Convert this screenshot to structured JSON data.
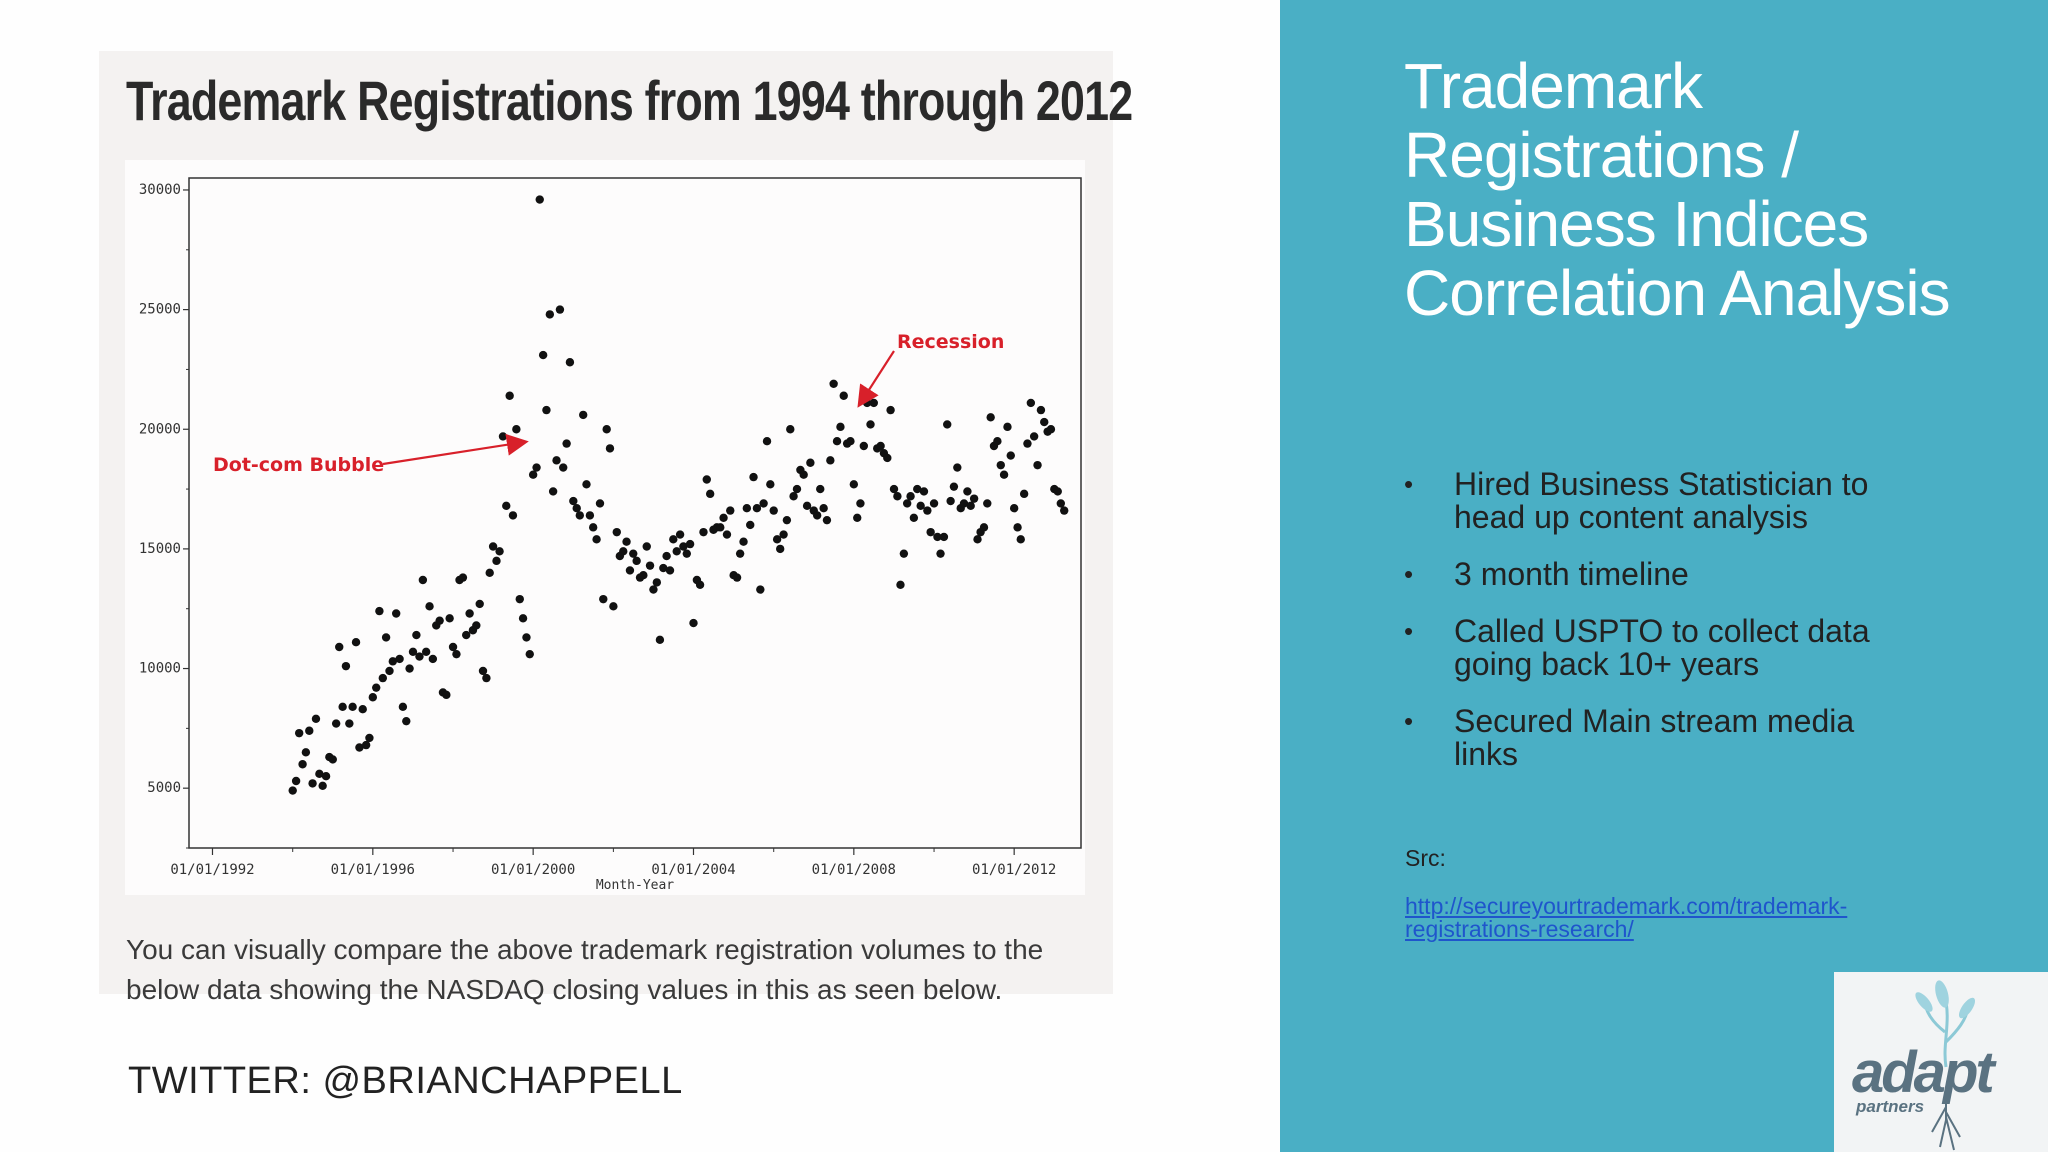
{
  "slide": {
    "twitter": "TWITTER: @BRIANCHAPPELL",
    "heading": "Trademark Registrations / Business Indices Correlation Analysis",
    "bullets": [
      "Hired Business Statistician to head up content analysis",
      "3 month timeline",
      "Called USPTO to collect data going back 10+ years",
      "Secured Main stream media links"
    ],
    "src_label": "Src:",
    "src_url": "http://secureyourtrademark.com/trademark-registrations-research/",
    "logo": {
      "word": "adapt",
      "sub": "partners"
    },
    "colors": {
      "panel": "#4aafc5",
      "annotation": "#d8202a",
      "link": "#1f55cc"
    }
  },
  "embed": {
    "caption": "You can visually compare the above trademark registration volumes to the below data showing the NASDAQ closing values in this as seen below."
  },
  "chart_data": {
    "type": "scatter",
    "title": "Trademark Registrations from 1994 through 2012",
    "xlabel": "Month-Year",
    "ylabel": "",
    "xlim": [
      "1991-06-01",
      "2013-09-01"
    ],
    "ylim": [
      2500,
      30500
    ],
    "xticks": [
      "01/01/1992",
      "01/01/1996",
      "01/01/2000",
      "01/01/2004",
      "01/01/2008",
      "01/01/2012"
    ],
    "yticks": [
      5000,
      10000,
      15000,
      20000,
      25000,
      30000
    ],
    "annotations": [
      {
        "text": "Dot-com Bubble",
        "target": [
          "1999-11-01",
          19800
        ]
      },
      {
        "text": "Recession",
        "target": [
          "2008-01-01",
          20800
        ]
      }
    ],
    "points": [
      [
        "1994-01-01",
        4900
      ],
      [
        "1994-02-01",
        5300
      ],
      [
        "1994-03-01",
        7300
      ],
      [
        "1994-04-01",
        6000
      ],
      [
        "1994-05-01",
        6500
      ],
      [
        "1994-06-01",
        7400
      ],
      [
        "1994-07-01",
        5200
      ],
      [
        "1994-08-01",
        7900
      ],
      [
        "1994-09-01",
        5600
      ],
      [
        "1994-10-01",
        5100
      ],
      [
        "1994-11-01",
        5500
      ],
      [
        "1994-12-01",
        6300
      ],
      [
        "1995-01-01",
        6200
      ],
      [
        "1995-02-01",
        7700
      ],
      [
        "1995-03-01",
        10900
      ],
      [
        "1995-04-01",
        8400
      ],
      [
        "1995-05-01",
        10100
      ],
      [
        "1995-06-01",
        7700
      ],
      [
        "1995-07-01",
        8400
      ],
      [
        "1995-08-01",
        11100
      ],
      [
        "1995-09-01",
        6700
      ],
      [
        "1995-10-01",
        8300
      ],
      [
        "1995-11-01",
        6800
      ],
      [
        "1995-12-01",
        7100
      ],
      [
        "1996-01-01",
        8800
      ],
      [
        "1996-02-01",
        9200
      ],
      [
        "1996-03-01",
        12400
      ],
      [
        "1996-04-01",
        9600
      ],
      [
        "1996-05-01",
        11300
      ],
      [
        "1996-06-01",
        9900
      ],
      [
        "1996-07-01",
        10300
      ],
      [
        "1996-08-01",
        12300
      ],
      [
        "1996-09-01",
        10400
      ],
      [
        "1996-10-01",
        8400
      ],
      [
        "1996-11-01",
        7800
      ],
      [
        "1996-12-01",
        10000
      ],
      [
        "1997-01-01",
        10700
      ],
      [
        "1997-02-01",
        11400
      ],
      [
        "1997-03-01",
        10500
      ],
      [
        "1997-04-01",
        13700
      ],
      [
        "1997-05-01",
        10700
      ],
      [
        "1997-06-01",
        12600
      ],
      [
        "1997-07-01",
        10400
      ],
      [
        "1997-08-01",
        11800
      ],
      [
        "1997-09-01",
        12000
      ],
      [
        "1997-10-01",
        9000
      ],
      [
        "1997-11-01",
        8900
      ],
      [
        "1997-12-01",
        12100
      ],
      [
        "1998-01-01",
        10900
      ],
      [
        "1998-02-01",
        10600
      ],
      [
        "1998-03-01",
        13700
      ],
      [
        "1998-04-01",
        13800
      ],
      [
        "1998-05-01",
        11400
      ],
      [
        "1998-06-01",
        12300
      ],
      [
        "1998-07-01",
        11600
      ],
      [
        "1998-08-01",
        11800
      ],
      [
        "1998-09-01",
        12700
      ],
      [
        "1998-10-01",
        9900
      ],
      [
        "1998-11-01",
        9600
      ],
      [
        "1998-12-01",
        14000
      ],
      [
        "1999-01-01",
        15100
      ],
      [
        "1999-02-01",
        14500
      ],
      [
        "1999-03-01",
        14900
      ],
      [
        "1999-04-01",
        19700
      ],
      [
        "1999-05-01",
        16800
      ],
      [
        "1999-06-01",
        21400
      ],
      [
        "1999-07-01",
        16400
      ],
      [
        "1999-08-01",
        20000
      ],
      [
        "1999-09-01",
        12900
      ],
      [
        "1999-10-01",
        12100
      ],
      [
        "1999-11-01",
        11300
      ],
      [
        "1999-12-01",
        10600
      ],
      [
        "2000-01-01",
        18100
      ],
      [
        "2000-02-01",
        18400
      ],
      [
        "2000-03-01",
        29600
      ],
      [
        "2000-04-01",
        23100
      ],
      [
        "2000-05-01",
        20800
      ],
      [
        "2000-06-01",
        24800
      ],
      [
        "2000-07-01",
        17400
      ],
      [
        "2000-08-01",
        18700
      ],
      [
        "2000-09-01",
        25000
      ],
      [
        "2000-10-01",
        18400
      ],
      [
        "2000-11-01",
        19400
      ],
      [
        "2000-12-01",
        22800
      ],
      [
        "2001-01-01",
        17000
      ],
      [
        "2001-02-01",
        16700
      ],
      [
        "2001-03-01",
        16400
      ],
      [
        "2001-04-01",
        20600
      ],
      [
        "2001-05-01",
        17700
      ],
      [
        "2001-06-01",
        16400
      ],
      [
        "2001-07-01",
        15900
      ],
      [
        "2001-08-01",
        15400
      ],
      [
        "2001-09-01",
        16900
      ],
      [
        "2001-10-01",
        12900
      ],
      [
        "2001-11-01",
        20000
      ],
      [
        "2001-12-01",
        19200
      ],
      [
        "2002-01-01",
        12600
      ],
      [
        "2002-02-01",
        15700
      ],
      [
        "2002-03-01",
        14700
      ],
      [
        "2002-04-01",
        14900
      ],
      [
        "2002-05-01",
        15300
      ],
      [
        "2002-06-01",
        14100
      ],
      [
        "2002-07-01",
        14800
      ],
      [
        "2002-08-01",
        14500
      ],
      [
        "2002-09-01",
        13800
      ],
      [
        "2002-10-01",
        13900
      ],
      [
        "2002-11-01",
        15100
      ],
      [
        "2002-12-01",
        14300
      ],
      [
        "2003-01-01",
        13300
      ],
      [
        "2003-02-01",
        13600
      ],
      [
        "2003-03-01",
        11200
      ],
      [
        "2003-04-01",
        14200
      ],
      [
        "2003-05-01",
        14700
      ],
      [
        "2003-06-01",
        14100
      ],
      [
        "2003-07-01",
        15400
      ],
      [
        "2003-08-01",
        14900
      ],
      [
        "2003-09-01",
        15600
      ],
      [
        "2003-10-01",
        15100
      ],
      [
        "2003-11-01",
        14800
      ],
      [
        "2003-12-01",
        15200
      ],
      [
        "2004-01-01",
        11900
      ],
      [
        "2004-02-01",
        13700
      ],
      [
        "2004-03-01",
        13500
      ],
      [
        "2004-04-01",
        15700
      ],
      [
        "2004-05-01",
        17900
      ],
      [
        "2004-06-01",
        17300
      ],
      [
        "2004-07-01",
        15800
      ],
      [
        "2004-08-01",
        15900
      ],
      [
        "2004-09-01",
        15900
      ],
      [
        "2004-10-01",
        16300
      ],
      [
        "2004-11-01",
        15600
      ],
      [
        "2004-12-01",
        16600
      ],
      [
        "2005-01-01",
        13900
      ],
      [
        "2005-02-01",
        13800
      ],
      [
        "2005-03-01",
        14800
      ],
      [
        "2005-04-01",
        15300
      ],
      [
        "2005-05-01",
        16700
      ],
      [
        "2005-06-01",
        16000
      ],
      [
        "2005-07-01",
        18000
      ],
      [
        "2005-08-01",
        16700
      ],
      [
        "2005-09-01",
        13300
      ],
      [
        "2005-10-01",
        16900
      ],
      [
        "2005-11-01",
        19500
      ],
      [
        "2005-12-01",
        17700
      ],
      [
        "2006-01-01",
        16600
      ],
      [
        "2006-02-01",
        15400
      ],
      [
        "2006-03-01",
        15000
      ],
      [
        "2006-04-01",
        15600
      ],
      [
        "2006-05-01",
        16200
      ],
      [
        "2006-06-01",
        20000
      ],
      [
        "2006-07-01",
        17200
      ],
      [
        "2006-08-01",
        17500
      ],
      [
        "2006-09-01",
        18300
      ],
      [
        "2006-10-01",
        18100
      ],
      [
        "2006-11-01",
        16800
      ],
      [
        "2006-12-01",
        18600
      ],
      [
        "2007-01-01",
        16600
      ],
      [
        "2007-02-01",
        16400
      ],
      [
        "2007-03-01",
        17500
      ],
      [
        "2007-04-01",
        16700
      ],
      [
        "2007-05-01",
        16200
      ],
      [
        "2007-06-01",
        18700
      ],
      [
        "2007-07-01",
        21900
      ],
      [
        "2007-08-01",
        19500
      ],
      [
        "2007-09-01",
        20100
      ],
      [
        "2007-10-01",
        21400
      ],
      [
        "2007-11-01",
        19400
      ],
      [
        "2007-12-01",
        19500
      ],
      [
        "2008-01-01",
        17700
      ],
      [
        "2008-02-01",
        16300
      ],
      [
        "2008-03-01",
        16900
      ],
      [
        "2008-04-01",
        19300
      ],
      [
        "2008-05-01",
        21100
      ],
      [
        "2008-06-01",
        20200
      ],
      [
        "2008-07-01",
        21100
      ],
      [
        "2008-08-01",
        19200
      ],
      [
        "2008-09-01",
        19300
      ],
      [
        "2008-10-01",
        19000
      ],
      [
        "2008-11-01",
        18800
      ],
      [
        "2008-12-01",
        20800
      ],
      [
        "2009-01-01",
        17500
      ],
      [
        "2009-02-01",
        17200
      ],
      [
        "2009-03-01",
        13500
      ],
      [
        "2009-04-01",
        14800
      ],
      [
        "2009-05-01",
        16900
      ],
      [
        "2009-06-01",
        17200
      ],
      [
        "2009-07-01",
        16300
      ],
      [
        "2009-08-01",
        17500
      ],
      [
        "2009-09-01",
        16800
      ],
      [
        "2009-10-01",
        17400
      ],
      [
        "2009-11-01",
        16600
      ],
      [
        "2009-12-01",
        15700
      ],
      [
        "2010-01-01",
        16900
      ],
      [
        "2010-02-01",
        15500
      ],
      [
        "2010-03-01",
        14800
      ],
      [
        "2010-04-01",
        15500
      ],
      [
        "2010-05-01",
        20200
      ],
      [
        "2010-06-01",
        17000
      ],
      [
        "2010-07-01",
        17600
      ],
      [
        "2010-08-01",
        18400
      ],
      [
        "2010-09-01",
        16700
      ],
      [
        "2010-10-01",
        16900
      ],
      [
        "2010-11-01",
        17400
      ],
      [
        "2010-12-01",
        16800
      ],
      [
        "2011-01-01",
        17100
      ],
      [
        "2011-02-01",
        15400
      ],
      [
        "2011-03-01",
        15700
      ],
      [
        "2011-04-01",
        15900
      ],
      [
        "2011-05-01",
        16900
      ],
      [
        "2011-06-01",
        20500
      ],
      [
        "2011-07-01",
        19300
      ],
      [
        "2011-08-01",
        19500
      ],
      [
        "2011-09-01",
        18500
      ],
      [
        "2011-10-01",
        18100
      ],
      [
        "2011-11-01",
        20100
      ],
      [
        "2011-12-01",
        18900
      ],
      [
        "2012-01-01",
        16700
      ],
      [
        "2012-02-01",
        15900
      ],
      [
        "2012-03-01",
        15400
      ],
      [
        "2012-04-01",
        17300
      ],
      [
        "2012-05-01",
        19400
      ],
      [
        "2012-06-01",
        21100
      ],
      [
        "2012-07-01",
        19700
      ],
      [
        "2012-08-01",
        18500
      ],
      [
        "2012-09-01",
        20800
      ],
      [
        "2012-10-01",
        20300
      ],
      [
        "2012-11-01",
        19900
      ],
      [
        "2012-12-01",
        20000
      ],
      [
        "2013-01-01",
        17500
      ],
      [
        "2013-02-01",
        17400
      ],
      [
        "2013-03-01",
        16900
      ],
      [
        "2013-04-01",
        16600
      ]
    ]
  }
}
